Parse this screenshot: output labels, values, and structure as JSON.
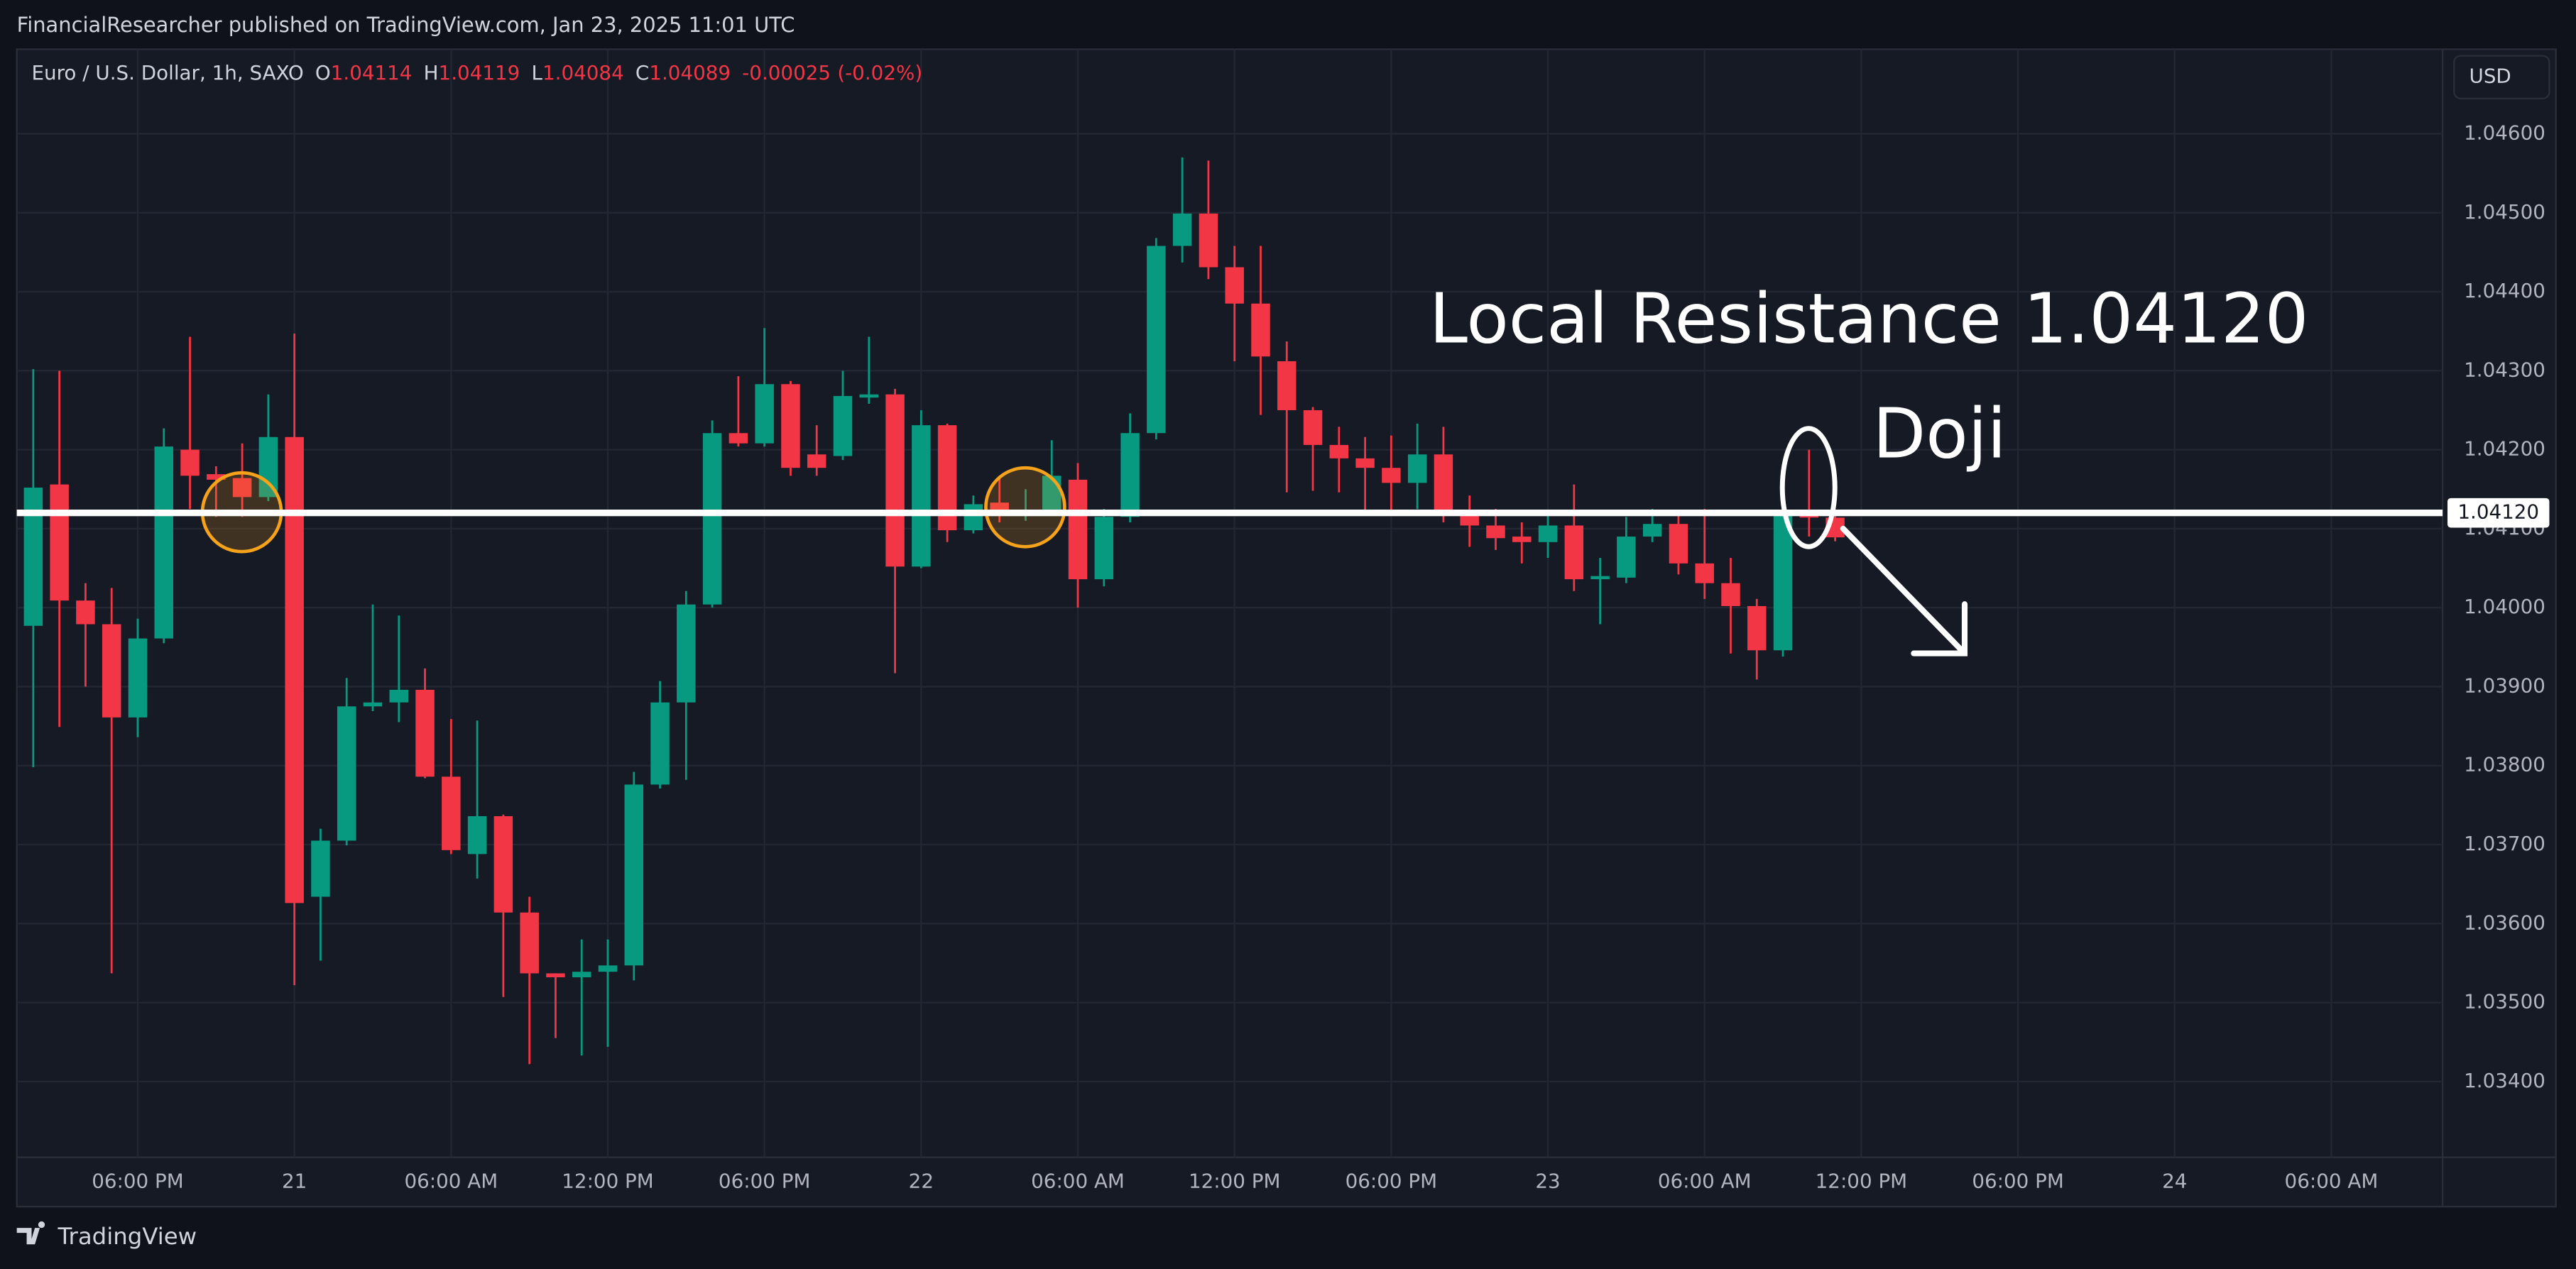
{
  "page": {
    "published": "FinancialResearcher published on TradingView.com, Jan 23, 2025 11:01 UTC",
    "brand": "TradingView",
    "currency": "USD"
  },
  "chart_data": {
    "type": "candlestick",
    "title": "Euro / U.S. Dollar, 1h, SAXO",
    "ohlc_labels": [
      "O",
      "H",
      "L",
      "C"
    ],
    "change": -0.00025,
    "change_pct": "(-0.02%)",
    "up_color": "#089981",
    "down_color": "#f23645",
    "grid": true,
    "open": [
      1.03977,
      1.04156,
      1.04009,
      1.03979,
      1.03861,
      1.03961,
      1.042,
      1.04169,
      1.04164,
      1.0414,
      1.04216,
      1.03634,
      1.03705,
      1.03875,
      1.0388,
      1.03896,
      1.03786,
      1.03688,
      1.03736,
      1.03614,
      1.03537,
      1.03532,
      1.03539,
      1.03547,
      1.03776,
      1.0388,
      1.04004,
      1.04221,
      1.04208,
      1.04283,
      1.04194,
      1.04192,
      1.04266,
      1.0427,
      1.04052,
      1.04231,
      1.04098,
      1.04133,
      1.04117,
      1.04119,
      1.04162,
      1.04036,
      1.04115,
      1.04221,
      1.04458,
      1.04499,
      1.04431,
      1.04385,
      1.04312,
      1.0425,
      1.04206,
      1.04189,
      1.04177,
      1.04158,
      1.04194,
      1.04119,
      1.04104,
      1.0409,
      1.04083,
      1.04104,
      1.04036,
      1.04038,
      1.0409,
      1.04106,
      1.04056,
      1.04031,
      1.04002,
      1.03946,
      1.0412,
      1.04114
    ],
    "high": [
      1.04302,
      1.043,
      1.04031,
      1.04025,
      1.03986,
      1.04227,
      1.04343,
      1.04179,
      1.04208,
      1.0427,
      1.04347,
      1.0372,
      1.03911,
      1.04004,
      1.0399,
      1.03923,
      1.03859,
      1.03857,
      1.03738,
      1.03634,
      1.03537,
      1.0358,
      1.0358,
      1.03792,
      1.03907,
      1.04021,
      1.04237,
      1.04293,
      1.04354,
      1.04287,
      1.04231,
      1.043,
      1.04343,
      1.04277,
      1.0425,
      1.04233,
      1.04142,
      1.04167,
      1.0415,
      1.04212,
      1.04183,
      1.04125,
      1.04246,
      1.04468,
      1.0457,
      1.04566,
      1.04458,
      1.04458,
      1.04337,
      1.04254,
      1.04229,
      1.04216,
      1.04218,
      1.04233,
      1.04229,
      1.04142,
      1.04125,
      1.04108,
      1.04117,
      1.04156,
      1.04063,
      1.04115,
      1.04125,
      1.04121,
      1.04125,
      1.04063,
      1.04011,
      1.04146,
      1.042,
      1.04119
    ],
    "low": [
      1.03798,
      1.03849,
      1.039,
      1.03537,
      1.03836,
      1.03955,
      1.04125,
      1.04115,
      1.04115,
      1.04135,
      1.03522,
      1.03553,
      1.03699,
      1.03869,
      1.03855,
      1.03784,
      1.03688,
      1.03657,
      1.03507,
      1.03422,
      1.03455,
      1.03433,
      1.03444,
      1.03528,
      1.03771,
      1.03782,
      1.04,
      1.04204,
      1.04204,
      1.04167,
      1.04167,
      1.04187,
      1.04258,
      1.03917,
      1.0405,
      1.04083,
      1.04094,
      1.04108,
      1.0411,
      1.04119,
      1.04,
      1.04027,
      1.04108,
      1.04213,
      1.04437,
      1.04416,
      1.04312,
      1.04244,
      1.04146,
      1.04148,
      1.04146,
      1.04119,
      1.04121,
      1.04125,
      1.04108,
      1.04077,
      1.04073,
      1.04056,
      1.04063,
      1.04021,
      1.03979,
      1.04031,
      1.04083,
      1.04042,
      1.04011,
      1.03942,
      1.03909,
      1.03938,
      1.0409,
      1.04084
    ],
    "close": [
      1.04152,
      1.04009,
      1.03979,
      1.03861,
      1.03961,
      1.04204,
      1.04167,
      1.04162,
      1.0414,
      1.04216,
      1.03626,
      1.03705,
      1.03875,
      1.0388,
      1.03896,
      1.03786,
      1.03693,
      1.03736,
      1.03614,
      1.03537,
      1.03532,
      1.03539,
      1.03547,
      1.03776,
      1.0388,
      1.04004,
      1.04221,
      1.04208,
      1.04283,
      1.04177,
      1.04177,
      1.04268,
      1.0427,
      1.04052,
      1.04231,
      1.04098,
      1.04131,
      1.04117,
      1.04121,
      1.04167,
      1.04036,
      1.04115,
      1.04221,
      1.04458,
      1.04499,
      1.04431,
      1.04385,
      1.04318,
      1.0425,
      1.04206,
      1.04189,
      1.04177,
      1.04158,
      1.04194,
      1.04119,
      1.04104,
      1.04088,
      1.04083,
      1.04104,
      1.04036,
      1.0404,
      1.0409,
      1.04106,
      1.04056,
      1.04031,
      1.04002,
      1.03946,
      1.04117,
      1.04114,
      1.04089
    ],
    "xlim": [
      -0.63,
      92.26
    ],
    "xticks": [
      {
        "value": 4,
        "label": "06:00 PM"
      },
      {
        "value": 10,
        "label": "21"
      },
      {
        "value": 16,
        "label": "06:00 AM"
      },
      {
        "value": 22,
        "label": "12:00 PM"
      },
      {
        "value": 28,
        "label": "06:00 PM"
      },
      {
        "value": 34,
        "label": "22"
      },
      {
        "value": 40,
        "label": "06:00 AM"
      },
      {
        "value": 46,
        "label": "12:00 PM"
      },
      {
        "value": 52,
        "label": "06:00 PM"
      },
      {
        "value": 58,
        "label": "23"
      },
      {
        "value": 64,
        "label": "06:00 AM"
      },
      {
        "value": 70,
        "label": "12:00 PM"
      },
      {
        "value": 76,
        "label": "06:00 PM"
      },
      {
        "value": 82,
        "label": "24"
      },
      {
        "value": 88,
        "label": "06:00 AM"
      }
    ],
    "ylim": [
      1.03304,
      1.04707
    ],
    "yticks": [
      {
        "value": 1.034,
        "label": "1.03400"
      },
      {
        "value": 1.035,
        "label": "1.03500"
      },
      {
        "value": 1.036,
        "label": "1.03600"
      },
      {
        "value": 1.037,
        "label": "1.03700"
      },
      {
        "value": 1.038,
        "label": "1.03800"
      },
      {
        "value": 1.039,
        "label": "1.03900"
      },
      {
        "value": 1.04,
        "label": "1.04000"
      },
      {
        "value": 1.041,
        "label": "1.04100"
      },
      {
        "value": 1.042,
        "label": "1.04200"
      },
      {
        "value": 1.043,
        "label": "1.04300"
      },
      {
        "value": 1.044,
        "label": "1.04400"
      },
      {
        "value": 1.045,
        "label": "1.04500"
      },
      {
        "value": 1.046,
        "label": "1.04600"
      }
    ],
    "hline": {
      "value": 1.0412,
      "label": "1.04120"
    },
    "annotations": [
      "Local Resistance 1.04120",
      "Doji"
    ]
  }
}
